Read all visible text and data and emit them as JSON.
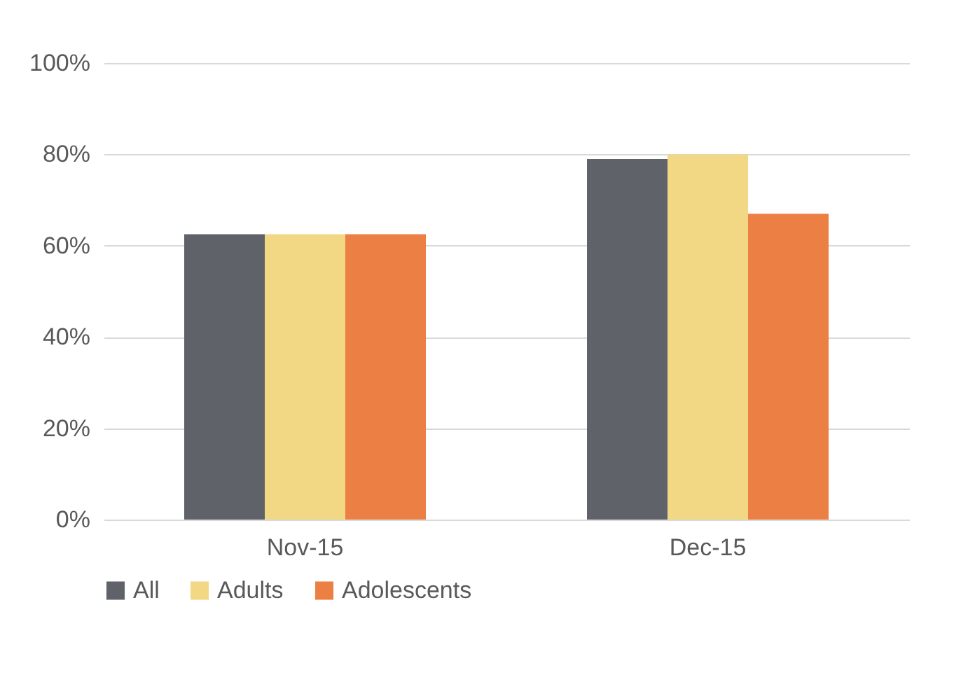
{
  "chart_data": {
    "type": "bar",
    "categories": [
      "Nov-15",
      "Dec-15"
    ],
    "series": [
      {
        "name": "All",
        "color": "#5f6369",
        "values": [
          62.5,
          79
        ]
      },
      {
        "name": "Adults",
        "color": "#f2d784",
        "values": [
          62.5,
          80
        ]
      },
      {
        "name": "Adolescents",
        "color": "#ec8044",
        "values": [
          62.5,
          67
        ]
      }
    ],
    "ylim": [
      0,
      100
    ],
    "yticks": [
      {
        "value": 0,
        "label": "0%"
      },
      {
        "value": 20,
        "label": "20%"
      },
      {
        "value": 40,
        "label": "40%"
      },
      {
        "value": 60,
        "label": "60%"
      },
      {
        "value": 80,
        "label": "80%"
      },
      {
        "value": 100,
        "label": "100%"
      }
    ],
    "grid": "y",
    "legend": "bottom"
  }
}
